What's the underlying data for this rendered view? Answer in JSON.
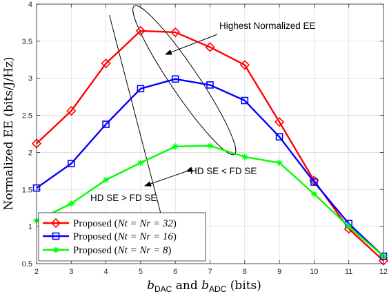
{
  "chart_data": {
    "type": "line",
    "title": "",
    "xlabel": "b_DAC and b_ADC (bits)",
    "xlabel_parts": {
      "b1": "b",
      "sub1": "DAC",
      "mid": "and",
      "b2": "b",
      "sub2": "ADC",
      "unit": "(bits)"
    },
    "ylabel": "Normalized EE (bits/J/Hz)",
    "xlim": [
      2,
      12
    ],
    "ylim": [
      0.5,
      4
    ],
    "x": [
      2,
      3,
      4,
      5,
      6,
      7,
      8,
      9,
      10,
      11,
      12
    ],
    "xticks": [
      "2",
      "3",
      "4",
      "5",
      "6",
      "7",
      "8",
      "9",
      "10",
      "11",
      "12"
    ],
    "yticks": [
      "0.5",
      "1",
      "1.5",
      "2",
      "2.5",
      "3",
      "3.5",
      "4"
    ],
    "grid": true,
    "legend_position": "bottom-left",
    "series": [
      {
        "name": "Proposed (N_t = N_r = 32)",
        "legend_prefix": "Proposed (",
        "legend_math": "Nt = Nr = 32",
        "legend_suffix": ")",
        "color": "#ff0000",
        "marker": "diamond",
        "values": [
          2.12,
          2.56,
          3.2,
          3.64,
          3.62,
          3.42,
          3.18,
          2.41,
          1.62,
          0.97,
          0.54
        ]
      },
      {
        "name": "Proposed (N_t = N_r = 16)",
        "legend_prefix": "Proposed (",
        "legend_math": "Nt = Nr = 16",
        "legend_suffix": ")",
        "color": "#0000ff",
        "marker": "square",
        "values": [
          1.52,
          1.85,
          2.38,
          2.86,
          2.99,
          2.91,
          2.7,
          2.21,
          1.6,
          1.04,
          0.6
        ]
      },
      {
        "name": "Proposed (N_t = N_r = 8)",
        "legend_prefix": "Proposed (",
        "legend_math": "Nt = Nr = 8",
        "legend_suffix": ")",
        "color": "#00ff00",
        "marker": "asterisk",
        "values": [
          1.08,
          1.31,
          1.63,
          1.86,
          2.08,
          2.09,
          1.94,
          1.86,
          1.44,
          1.0,
          0.6
        ]
      }
    ],
    "annotations": [
      "Highest Normalized EE",
      "HD SE < FD SE",
      "HD SE > FD SE"
    ]
  }
}
